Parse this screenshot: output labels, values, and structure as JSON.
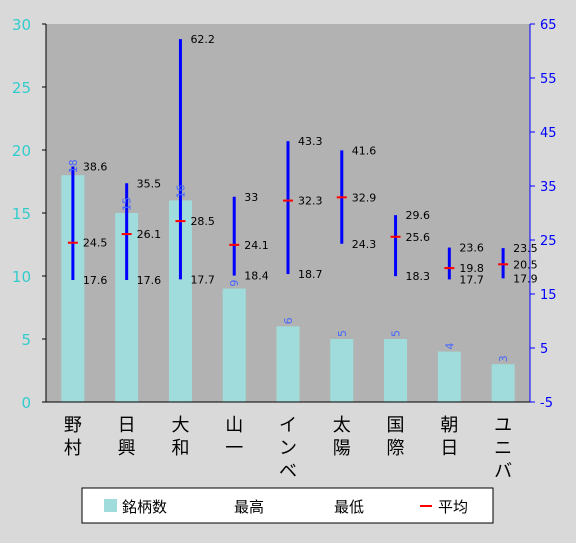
{
  "chart_data": {
    "type": "bar",
    "categories": [
      [
        "野",
        "村"
      ],
      [
        "日",
        "興"
      ],
      [
        "大",
        "和"
      ],
      [
        "山",
        "一"
      ],
      [
        "イ",
        "ン",
        "ベ"
      ],
      [
        "太",
        "陽"
      ],
      [
        "国",
        "際"
      ],
      [
        "朝",
        "日"
      ],
      [
        "ユ",
        "ニ",
        "バ"
      ]
    ],
    "count_values": [
      18,
      15,
      16,
      9,
      6,
      5,
      5,
      4,
      3
    ],
    "count_labels": [
      "18",
      "15",
      "16",
      "9",
      "6",
      "5",
      "5",
      "4",
      "3"
    ],
    "high_values": [
      38.6,
      35.5,
      62.2,
      33,
      43.3,
      41.6,
      29.6,
      23.6,
      23.5
    ],
    "low_values": [
      17.6,
      17.6,
      17.7,
      18.4,
      18.7,
      24.3,
      18.3,
      17.7,
      17.9
    ],
    "avg_values": [
      24.5,
      26.1,
      28.5,
      24.1,
      32.3,
      32.9,
      25.6,
      19.8,
      20.5
    ],
    "high_labels": [
      "38.6",
      "35.5",
      "62.2",
      "33",
      "43.3",
      "41.6",
      "29.6",
      "23.6",
      "23.5"
    ],
    "low_labels": [
      "17.6",
      "17.6",
      "17.7",
      "18.4",
      "18.7",
      "24.3",
      "18.3",
      "17.7",
      "17.9"
    ],
    "avg_labels": [
      "24.5",
      "26.1",
      "28.5",
      "24.1",
      "32.3",
      "32.9",
      "25.6",
      "19.8",
      "20.5"
    ],
    "y_left": {
      "min": 0,
      "max": 30,
      "ticks": [
        "0",
        "5",
        "10",
        "15",
        "20",
        "25",
        "30"
      ],
      "values": [
        0,
        5,
        10,
        15,
        20,
        25,
        30
      ]
    },
    "y_right": {
      "min": -5,
      "max": 65,
      "ticks": [
        "-5",
        "5",
        "15",
        "25",
        "35",
        "45",
        "55",
        "65"
      ],
      "values": [
        -5,
        5,
        15,
        25,
        35,
        45,
        55,
        65
      ]
    },
    "grid": false,
    "legend_position": "bottom",
    "legend": [
      {
        "label": "銘柄数",
        "kind": "bar"
      },
      {
        "label": "最高",
        "kind": "none"
      },
      {
        "label": "最低",
        "kind": "none"
      },
      {
        "label": "平均",
        "kind": "dash"
      }
    ],
    "colors": {
      "page_bg": "#d9d9d9",
      "plot_bg": "#b2b2b2",
      "bar": "#a0dcdc",
      "range_line": "#0000ff",
      "avg_mark": "#ff0000",
      "left_axis_text": "#33cccc",
      "right_axis": "#0000ff",
      "count_label": "#4466ff",
      "value_label": "#000000"
    }
  }
}
